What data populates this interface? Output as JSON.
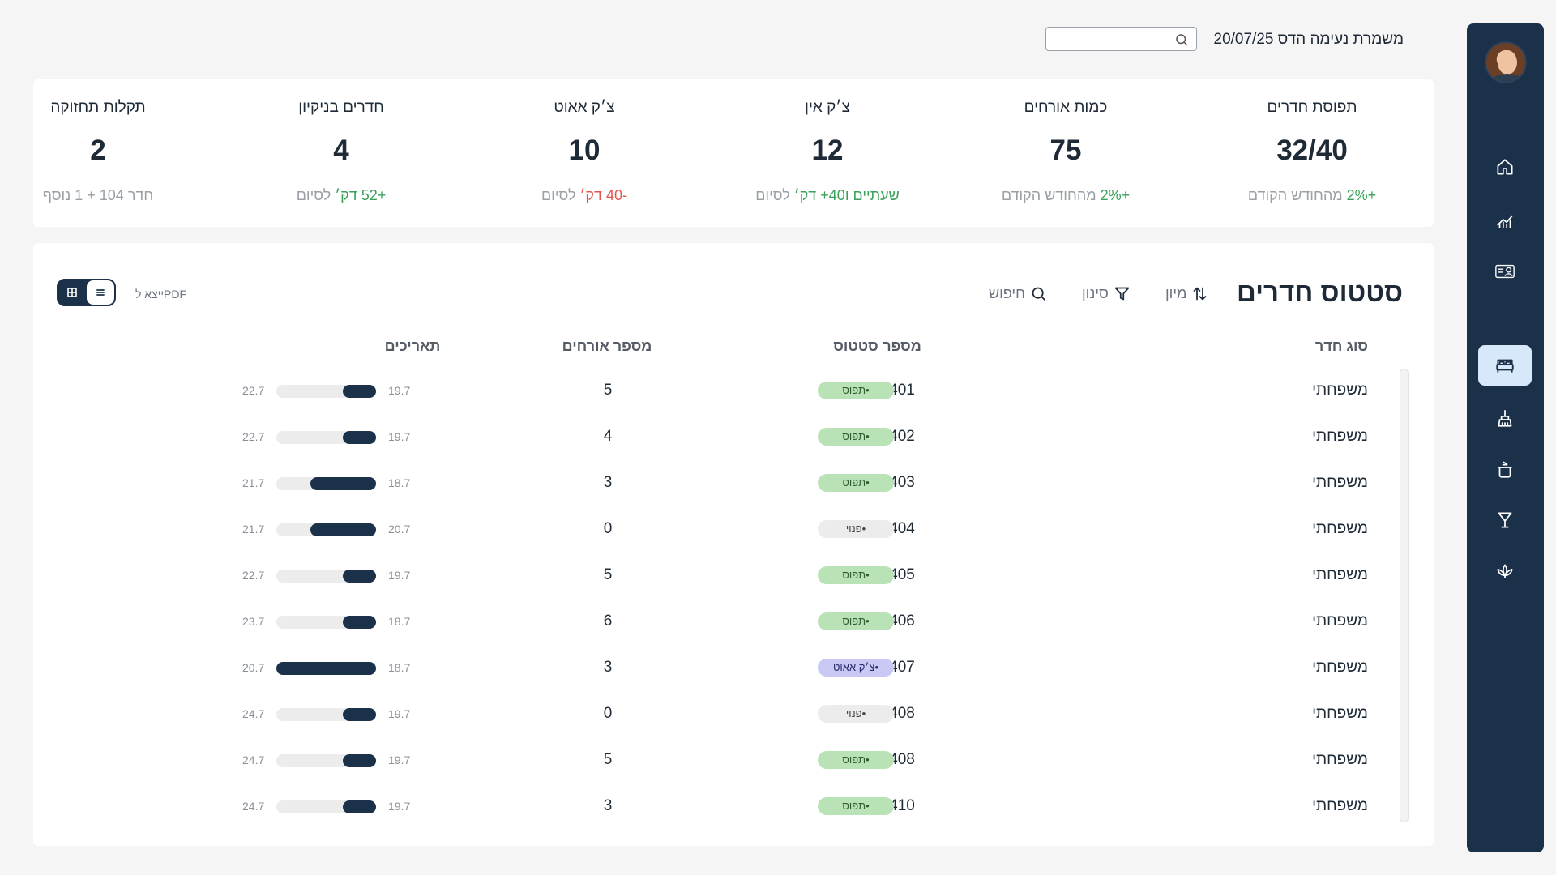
{
  "header": {
    "date": "20/07/25",
    "shift_label": "משמרת נעימה הדס",
    "search_placeholder": ""
  },
  "stats": [
    {
      "label": "תפוסת חדרים",
      "value": "32/40",
      "sub_highlight": "+2%",
      "sub_text": " מהחודש הקודם",
      "tone": "pos"
    },
    {
      "label": "כמות אורחים",
      "value": "75",
      "sub_highlight": "+2%",
      "sub_text": " מהחודש הקודם",
      "tone": "pos"
    },
    {
      "label": "צ׳ק אין",
      "value": "12",
      "sub_highlight": "שעתיים ו40+ דק׳",
      "sub_text": " לסיום",
      "tone": "pos"
    },
    {
      "label": "צ׳ק אאוט",
      "value": "10",
      "sub_highlight": "-40 דק׳",
      "sub_text": " לסיום",
      "tone": "neg"
    },
    {
      "label": "חדרים בניקיון",
      "value": "4",
      "sub_highlight": "+52 דק׳",
      "sub_text": " לסיום",
      "tone": "pos"
    },
    {
      "label": "תקלות תחזוקה",
      "value": "2",
      "sub_highlight": "",
      "sub_text": "חדר 104 + 1 נוסף",
      "tone": "none"
    }
  ],
  "rooms_section": {
    "title": "סטטוס חדרים",
    "sort_label": "מיון",
    "filter_label": "סינון",
    "search_label": "חיפוש",
    "export_label": "ייצא לPDF",
    "columns": {
      "type": "סוג חדר",
      "number": "מספר",
      "status": "סטטוס",
      "guests": "מספר אורחים",
      "dates": "תאריכים"
    },
    "rows": [
      {
        "type": "משפחתי",
        "number": "401",
        "status": "תפוס",
        "status_kind": "occupied",
        "guests": "5",
        "start": "19.7",
        "end": "22.7",
        "fill": 0.33
      },
      {
        "type": "משפחתי",
        "number": "402",
        "status": "תפוס",
        "status_kind": "occupied",
        "guests": "4",
        "start": "19.7",
        "end": "22.7",
        "fill": 0.33
      },
      {
        "type": "משפחתי",
        "number": "403",
        "status": "תפוס",
        "status_kind": "occupied",
        "guests": "3",
        "start": "18.7",
        "end": "21.7",
        "fill": 0.66
      },
      {
        "type": "משפחתי",
        "number": "404",
        "status": "פנוי",
        "status_kind": "free",
        "guests": "0",
        "start": "20.7",
        "end": "21.7",
        "fill": 0.66
      },
      {
        "type": "משפחתי",
        "number": "405",
        "status": "תפוס",
        "status_kind": "occupied",
        "guests": "5",
        "start": "19.7",
        "end": "22.7",
        "fill": 0.33
      },
      {
        "type": "משפחתי",
        "number": "406",
        "status": "תפוס",
        "status_kind": "occupied",
        "guests": "6",
        "start": "18.7",
        "end": "23.7",
        "fill": 0.33
      },
      {
        "type": "משפחתי",
        "number": "407",
        "status": "צ׳ק אאוט",
        "status_kind": "checkout",
        "guests": "3",
        "start": "18.7",
        "end": "20.7",
        "fill": 1.0
      },
      {
        "type": "משפחתי",
        "number": "408",
        "status": "פנוי",
        "status_kind": "free",
        "guests": "0",
        "start": "19.7",
        "end": "24.7",
        "fill": 0.33
      },
      {
        "type": "משפחתי",
        "number": "408",
        "status": "תפוס",
        "status_kind": "occupied",
        "guests": "5",
        "start": "19.7",
        "end": "24.7",
        "fill": 0.33
      },
      {
        "type": "משפחתי",
        "number": "410",
        "status": "תפוס",
        "status_kind": "occupied",
        "guests": "3",
        "start": "19.7",
        "end": "24.7",
        "fill": 0.33
      }
    ]
  },
  "sidebar": {
    "items": [
      {
        "icon": "home-icon"
      },
      {
        "icon": "analytics-icon"
      },
      {
        "icon": "guest-card-icon"
      },
      {
        "icon": "bed-icon",
        "active": true
      },
      {
        "icon": "cleaning-icon"
      },
      {
        "icon": "room-service-icon"
      },
      {
        "icon": "bar-icon"
      },
      {
        "icon": "spa-icon"
      }
    ]
  },
  "colors": {
    "sidebar": "#1b3049",
    "accent_active": "#d7e8fb",
    "positive": "#3aa05a",
    "negative": "#e0554e"
  }
}
